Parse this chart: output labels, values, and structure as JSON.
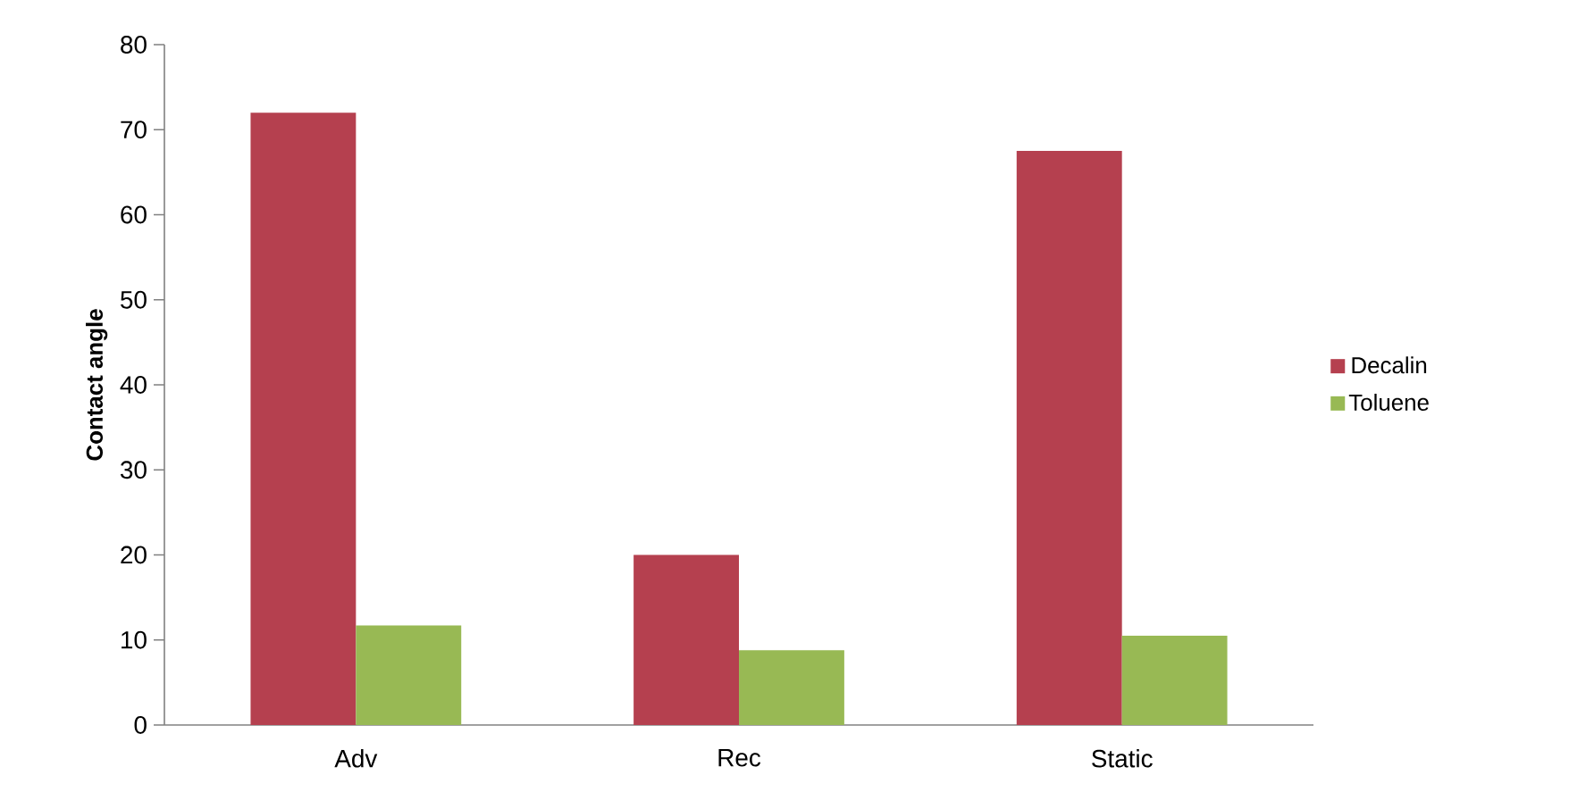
{
  "chart_data": {
    "type": "bar",
    "ylabel": "Contact angle",
    "categories": [
      "Adv",
      "Rec",
      "Static"
    ],
    "series": [
      {
        "name": "Decalin",
        "color": "#b5404f",
        "values": [
          72,
          20,
          67.5
        ]
      },
      {
        "name": "Toluene",
        "color": "#98b954",
        "values": [
          11.7,
          8.8,
          10.5
        ]
      }
    ],
    "ylim": [
      0,
      80
    ],
    "yticks": [
      0,
      10,
      20,
      30,
      40,
      50,
      60,
      70,
      80
    ],
    "legend": "right",
    "grid": false
  }
}
